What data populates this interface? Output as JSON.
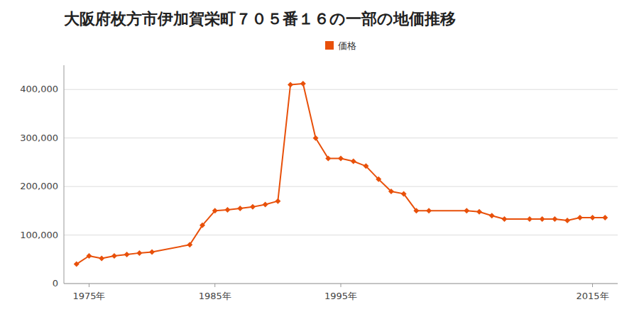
{
  "chart_data": {
    "type": "line",
    "title": "大阪府枚方市伊加賀栄町７０５番１６の一部の地価推移",
    "x": [
      1974,
      1975,
      1976,
      1977,
      1978,
      1979,
      1980,
      1983,
      1984,
      1985,
      1986,
      1987,
      1988,
      1989,
      1990,
      1991,
      1992,
      1993,
      1994,
      1995,
      1996,
      1997,
      1998,
      1999,
      2000,
      2001,
      2002,
      2005,
      2006,
      2007,
      2008,
      2010,
      2011,
      2012,
      2013,
      2014,
      2015,
      2016
    ],
    "series": [
      {
        "name": "価格",
        "color": "#E8500A",
        "marker": "diamond",
        "values": [
          40000,
          57000,
          52000,
          57000,
          60000,
          63000,
          65000,
          80000,
          120000,
          150000,
          152000,
          155000,
          158000,
          163000,
          170000,
          410000,
          412000,
          300000,
          258000,
          258000,
          252000,
          242000,
          215000,
          190000,
          185000,
          150000,
          150000,
          150000,
          148000,
          140000,
          133000,
          133000,
          133000,
          133000,
          130000,
          136000,
          136000,
          136000
        ]
      }
    ],
    "xlim": [
      1973,
      2017
    ],
    "ylim": [
      0,
      450000
    ],
    "xticks": [
      {
        "value": 1975,
        "label": "1975年"
      },
      {
        "value": 1985,
        "label": "1985年"
      },
      {
        "value": 1995,
        "label": "1995年"
      },
      {
        "value": 2015,
        "label": "2015年"
      }
    ],
    "yticks": [
      0,
      {
        "value": 100000,
        "label": "100,000"
      },
      {
        "value": 200000,
        "label": "200,000"
      },
      {
        "value": 300000,
        "label": "300,000"
      },
      {
        "value": 400000,
        "label": "400,000"
      }
    ],
    "grid": true,
    "legend": "top"
  }
}
